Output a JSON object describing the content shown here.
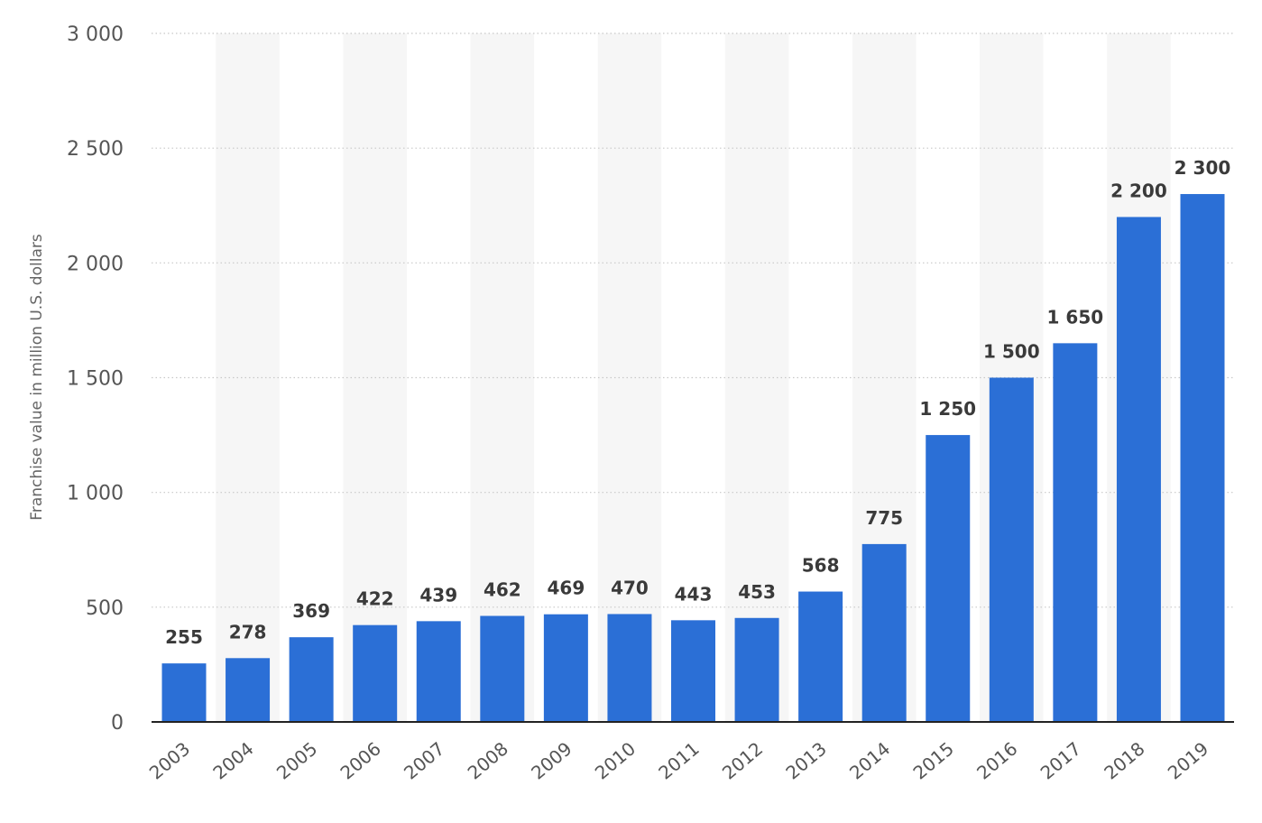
{
  "chart_data": {
    "type": "bar",
    "title": "",
    "xlabel": "",
    "ylabel": "Franchise value in million U.S. dollars",
    "categories": [
      "2003",
      "2004",
      "2005",
      "2006",
      "2007",
      "2008",
      "2009",
      "2010",
      "2011",
      "2012",
      "2013",
      "2014",
      "2015",
      "2016",
      "2017",
      "2018",
      "2019"
    ],
    "values": [
      255,
      278,
      369,
      422,
      439,
      462,
      469,
      470,
      443,
      453,
      568,
      775,
      1250,
      1500,
      1650,
      2200,
      2300
    ],
    "value_labels": [
      "255",
      "278",
      "369",
      "422",
      "439",
      "462",
      "469",
      "470",
      "443",
      "453",
      "568",
      "775",
      "1 250",
      "1 500",
      "1 650",
      "2 200",
      "2 300"
    ],
    "ylim": [
      0,
      3000
    ],
    "yticks": [
      0,
      500,
      1000,
      1500,
      2000,
      2500,
      3000
    ],
    "ytick_labels": [
      "0",
      "500",
      "1 000",
      "1 500",
      "2 000",
      "2 500",
      "3 000"
    ],
    "grid": true,
    "bar_color": "#2b6fd6",
    "band_color": "#f6f6f6"
  }
}
